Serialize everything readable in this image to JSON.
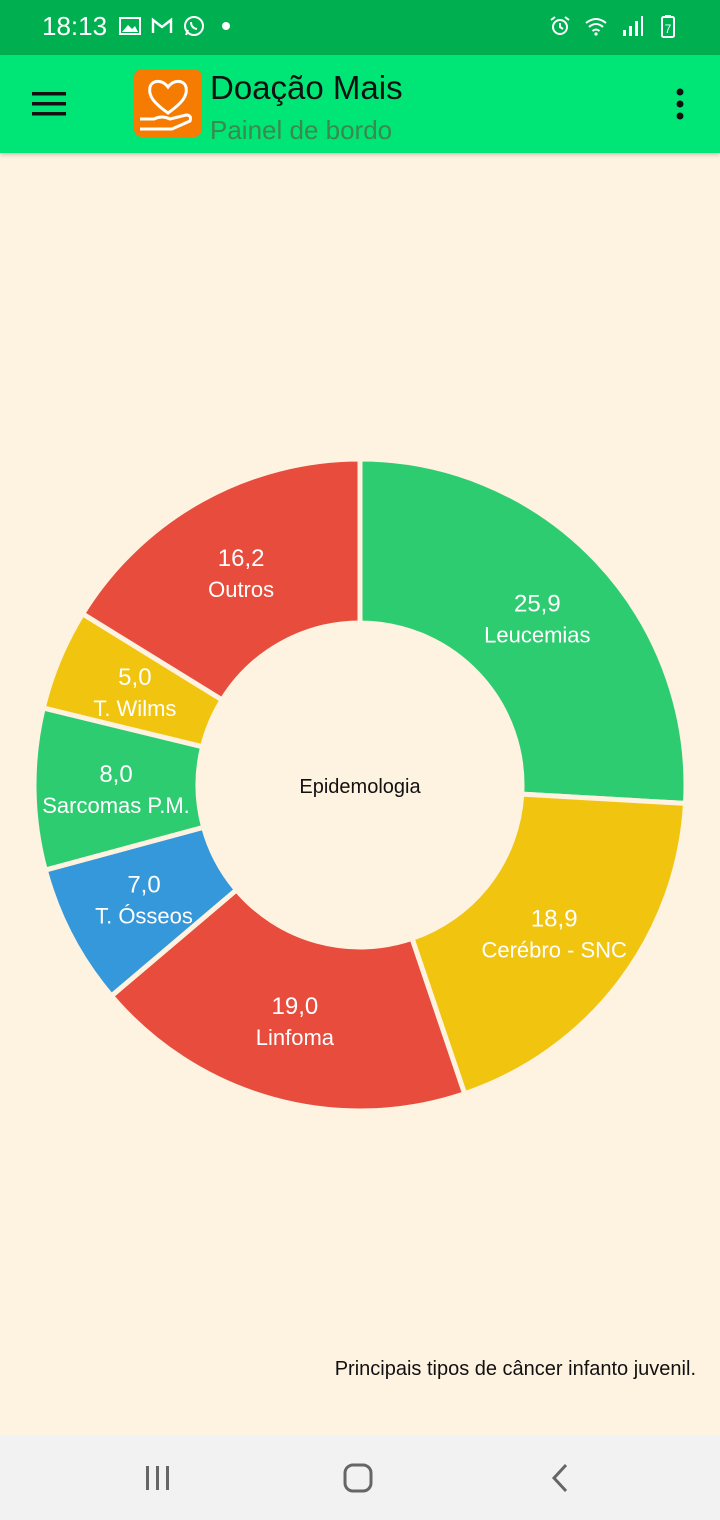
{
  "status_bar": {
    "time": "18:13",
    "left_icons": [
      "image-icon",
      "gmail-icon",
      "whatsapp-icon",
      "dot-icon"
    ],
    "right_icons": [
      "alarm-icon",
      "wifi-icon",
      "signal-icon",
      "battery-icon"
    ],
    "battery_level": "7"
  },
  "app_bar": {
    "title": "Doação Mais",
    "subtitle": "Painel de bordo",
    "accent_color": "#00E676",
    "logo_color": "#F57C00"
  },
  "chart_data": {
    "type": "pie",
    "variant": "donut",
    "center_label": "Epidemologia",
    "slices": [
      {
        "label": "Leucemias",
        "value_text": "25,9",
        "value": 25.9,
        "color": "#2ECC71"
      },
      {
        "label": "Cerébro - SNC",
        "value_text": "18,9",
        "value": 18.9,
        "color": "#F1C40F"
      },
      {
        "label": "Linfoma",
        "value_text": "19,0",
        "value": 19.0,
        "color": "#E74C3C"
      },
      {
        "label": "T. Ósseos",
        "value_text": "7,0",
        "value": 7.0,
        "color": "#3498DB"
      },
      {
        "label": "Sarcomas P.M.",
        "value_text": "8,0",
        "value": 8.0,
        "color": "#2ECC71"
      },
      {
        "label": "T. Wilms",
        "value_text": "5,0",
        "value": 5.0,
        "color": "#F1C40F"
      },
      {
        "label": "Outros",
        "value_text": "16,2",
        "value": 16.2,
        "color": "#E74C3C"
      }
    ]
  },
  "description": "Principais tipos de câncer infanto juvenil.",
  "nav_bar": {
    "icons": [
      "recent-apps-icon",
      "home-icon",
      "back-icon"
    ]
  }
}
